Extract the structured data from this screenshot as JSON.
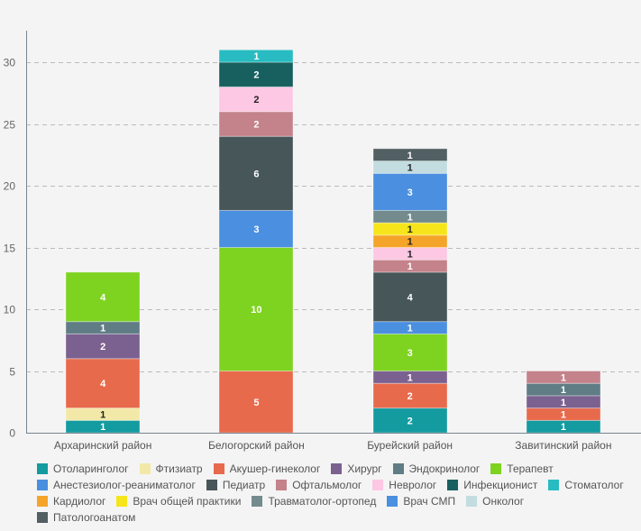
{
  "chart_data": {
    "type": "bar",
    "stacked": true,
    "title": "",
    "xlabel": "",
    "ylabel": "",
    "ylim": [
      0,
      32
    ],
    "yticks": [
      0,
      5,
      10,
      15,
      20,
      25,
      30
    ],
    "grid": true,
    "legend_position": "bottom",
    "categories": [
      "Архаринский район",
      "Белогорский район",
      "Бурейский район",
      "Завитинский район"
    ],
    "series": [
      {
        "name": "Отоларинголог",
        "color": "#139ba0",
        "label_color": "#ffffff",
        "values": [
          1,
          0,
          2,
          1
        ]
      },
      {
        "name": "Фтизиатр",
        "color": "#f2e9a8",
        "label_color": "#222222",
        "values": [
          1,
          0,
          0,
          0
        ]
      },
      {
        "name": "Акушер-гинеколог",
        "color": "#e86a4c",
        "label_color": "#ffffff",
        "values": [
          4,
          5,
          2,
          1
        ]
      },
      {
        "name": "Хирург",
        "color": "#7b6190",
        "label_color": "#ffffff",
        "values": [
          2,
          0,
          1,
          1
        ]
      },
      {
        "name": "Эндокринолог",
        "color": "#607d86",
        "label_color": "#ffffff",
        "values": [
          1,
          0,
          0,
          1
        ]
      },
      {
        "name": "Терапевт",
        "color": "#7ed321",
        "label_color": "#ffffff",
        "values": [
          4,
          10,
          3,
          0
        ]
      },
      {
        "name": "Анестезиолог-реаниматолог",
        "color": "#4a8fe0",
        "label_color": "#ffffff",
        "values": [
          0,
          3,
          1,
          0
        ]
      },
      {
        "name": "Педиатр",
        "color": "#475659",
        "label_color": "#ffffff",
        "values": [
          0,
          6,
          4,
          0
        ]
      },
      {
        "name": "Офтальмолог",
        "color": "#c4828a",
        "label_color": "#ffffff",
        "values": [
          0,
          2,
          1,
          1
        ]
      },
      {
        "name": "Невролог",
        "color": "#fcc8e4",
        "label_color": "#222222",
        "values": [
          0,
          2,
          1,
          0
        ]
      },
      {
        "name": "Инфекционист",
        "color": "#17605f",
        "label_color": "#ffffff",
        "values": [
          0,
          2,
          0,
          0
        ]
      },
      {
        "name": "Стоматолог",
        "color": "#28bcc2",
        "label_color": "#ffffff",
        "values": [
          0,
          1,
          0,
          0
        ]
      },
      {
        "name": "Кардиолог",
        "color": "#f5a42a",
        "label_color": "#222222",
        "values": [
          0,
          0,
          1,
          0
        ]
      },
      {
        "name": "Врач общей практики",
        "color": "#f7e51b",
        "label_color": "#222222",
        "values": [
          0,
          0,
          1,
          0
        ]
      },
      {
        "name": "Травматолог-ортопед",
        "color": "#738b8c",
        "label_color": "#ffffff",
        "values": [
          0,
          0,
          1,
          0
        ]
      },
      {
        "name": "Врач СМП",
        "color": "#4a8fe0",
        "label_color": "#ffffff",
        "values": [
          0,
          0,
          3,
          0
        ]
      },
      {
        "name": "Онколог",
        "color": "#c2dce0",
        "label_color": "#222222",
        "values": [
          0,
          0,
          1,
          0
        ]
      },
      {
        "name": "Патологоанатом",
        "color": "#525f63",
        "label_color": "#ffffff",
        "values": [
          0,
          0,
          1,
          0
        ]
      }
    ],
    "totals": [
      13,
      31,
      23,
      5
    ]
  },
  "colors": {
    "axis": "#7a8590",
    "grid": "#bbbbbb",
    "background": "#f4f4f4"
  }
}
